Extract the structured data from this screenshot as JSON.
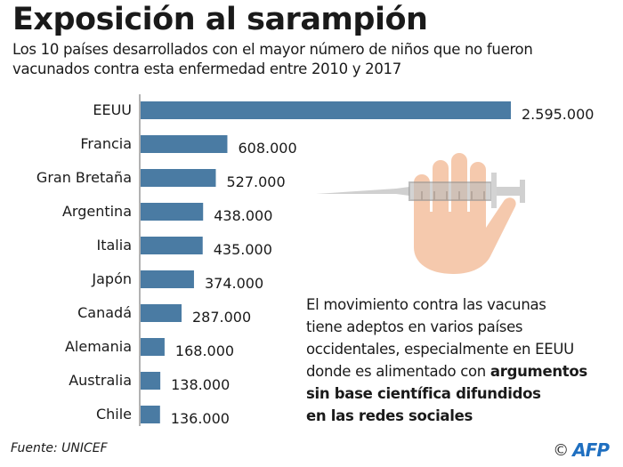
{
  "header": {
    "title": "Exposición al sarampión",
    "subtitle_line1": "Los 10 países desarrollados con el mayor número de niños que no fueron",
    "subtitle_line2": "vacunados contra esta enfermedad entre 2010 y 2017"
  },
  "chart_data": {
    "type": "bar",
    "orientation": "horizontal",
    "title": "Exposición al sarampión",
    "subtitle": "Los 10 países desarrollados con el mayor número de niños que no fueron vacunados contra esta enfermedad entre 2010 y 2017",
    "xlabel": "",
    "ylabel": "",
    "categories": [
      "EEUU",
      "Francia",
      "Gran Bretaña",
      "Argentina",
      "Italia",
      "Japón",
      "Canadá",
      "Alemania",
      "Australia",
      "Chile"
    ],
    "values": [
      2595000,
      608000,
      527000,
      438000,
      435000,
      374000,
      287000,
      168000,
      138000,
      136000
    ],
    "value_labels": [
      "2.595.000",
      "608.000",
      "527.000",
      "438.000",
      "435.000",
      "374.000",
      "287.000",
      "168.000",
      "138.000",
      "136.000"
    ],
    "xlim": [
      0,
      2595000
    ],
    "grid": false,
    "legend": "none",
    "bar_color": "#4a7ba3"
  },
  "note": {
    "line1": "El movimiento contra las vacunas",
    "line2": "tiene adeptos en varios países",
    "line3": "occidentales, especialmente en EEUU",
    "line4_regular": "donde es alimentado con ",
    "line4_bold": "argumentos",
    "line5_bold": "sin base científica difundidos",
    "line6_bold": "en las redes sociales"
  },
  "illustration": {
    "icon": "hand-stopping-syringe-icon",
    "hand_color": "#f5c9ad",
    "syringe_color": "#cccccc"
  },
  "footer": {
    "source": "Fuente: UNICEF",
    "copyright_symbol": "©",
    "agency": "AFP",
    "agency_color": "#1f6fc0"
  }
}
